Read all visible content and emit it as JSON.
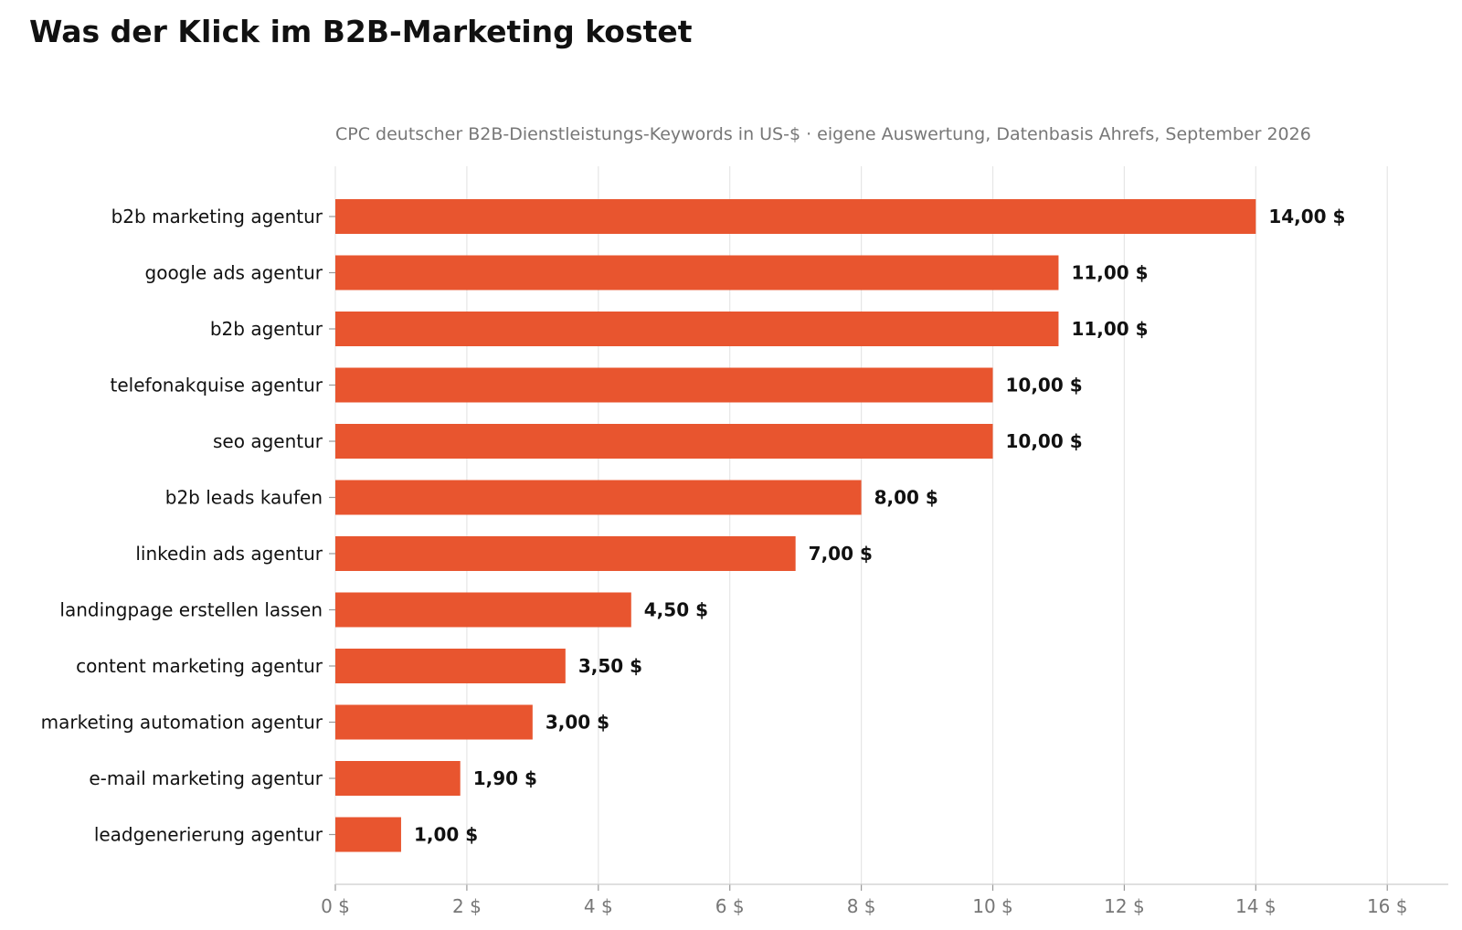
{
  "chart_data": {
    "type": "bar",
    "orientation": "horizontal",
    "title": "Was der Klick im B2B-Marketing kostet",
    "subtitle": "CPC deutscher B2B-Dienstleistungs-Keywords in US-$ · eigene Auswertung, Datenbasis Ahrefs, September 2026",
    "categories": [
      "b2b marketing agentur",
      "google ads agentur",
      "b2b agentur",
      "telefonakquise agentur",
      "seo agentur",
      "b2b leads kaufen",
      "linkedin ads agentur",
      "landingpage erstellen lassen",
      "content marketing agentur",
      "marketing automation agentur",
      "e-mail marketing agentur",
      "leadgenerierung agentur"
    ],
    "values": [
      14.0,
      11.0,
      11.0,
      10.0,
      10.0,
      8.0,
      7.0,
      4.5,
      3.5,
      3.0,
      1.9,
      1.0
    ],
    "value_labels": [
      "14,00 $",
      "11,00 $",
      "11,00 $",
      "10,00 $",
      "10,00 $",
      "8,00 $",
      "7,00 $",
      "4,50 $",
      "3,50 $",
      "3,00 $",
      "1,90 $",
      "1,00 $"
    ],
    "xlim": [
      0,
      16
    ],
    "xticks": [
      0,
      2,
      4,
      6,
      8,
      10,
      12,
      14,
      16
    ],
    "xtick_labels": [
      "0 $",
      "2 $",
      "4 $",
      "6 $",
      "8 $",
      "10 $",
      "12 $",
      "14 $",
      "16 $"
    ],
    "grid": true,
    "bar_color": "#e8552f",
    "grid_color": "#e6e6e6",
    "text_color": "#111111",
    "muted_color": "#777777"
  }
}
